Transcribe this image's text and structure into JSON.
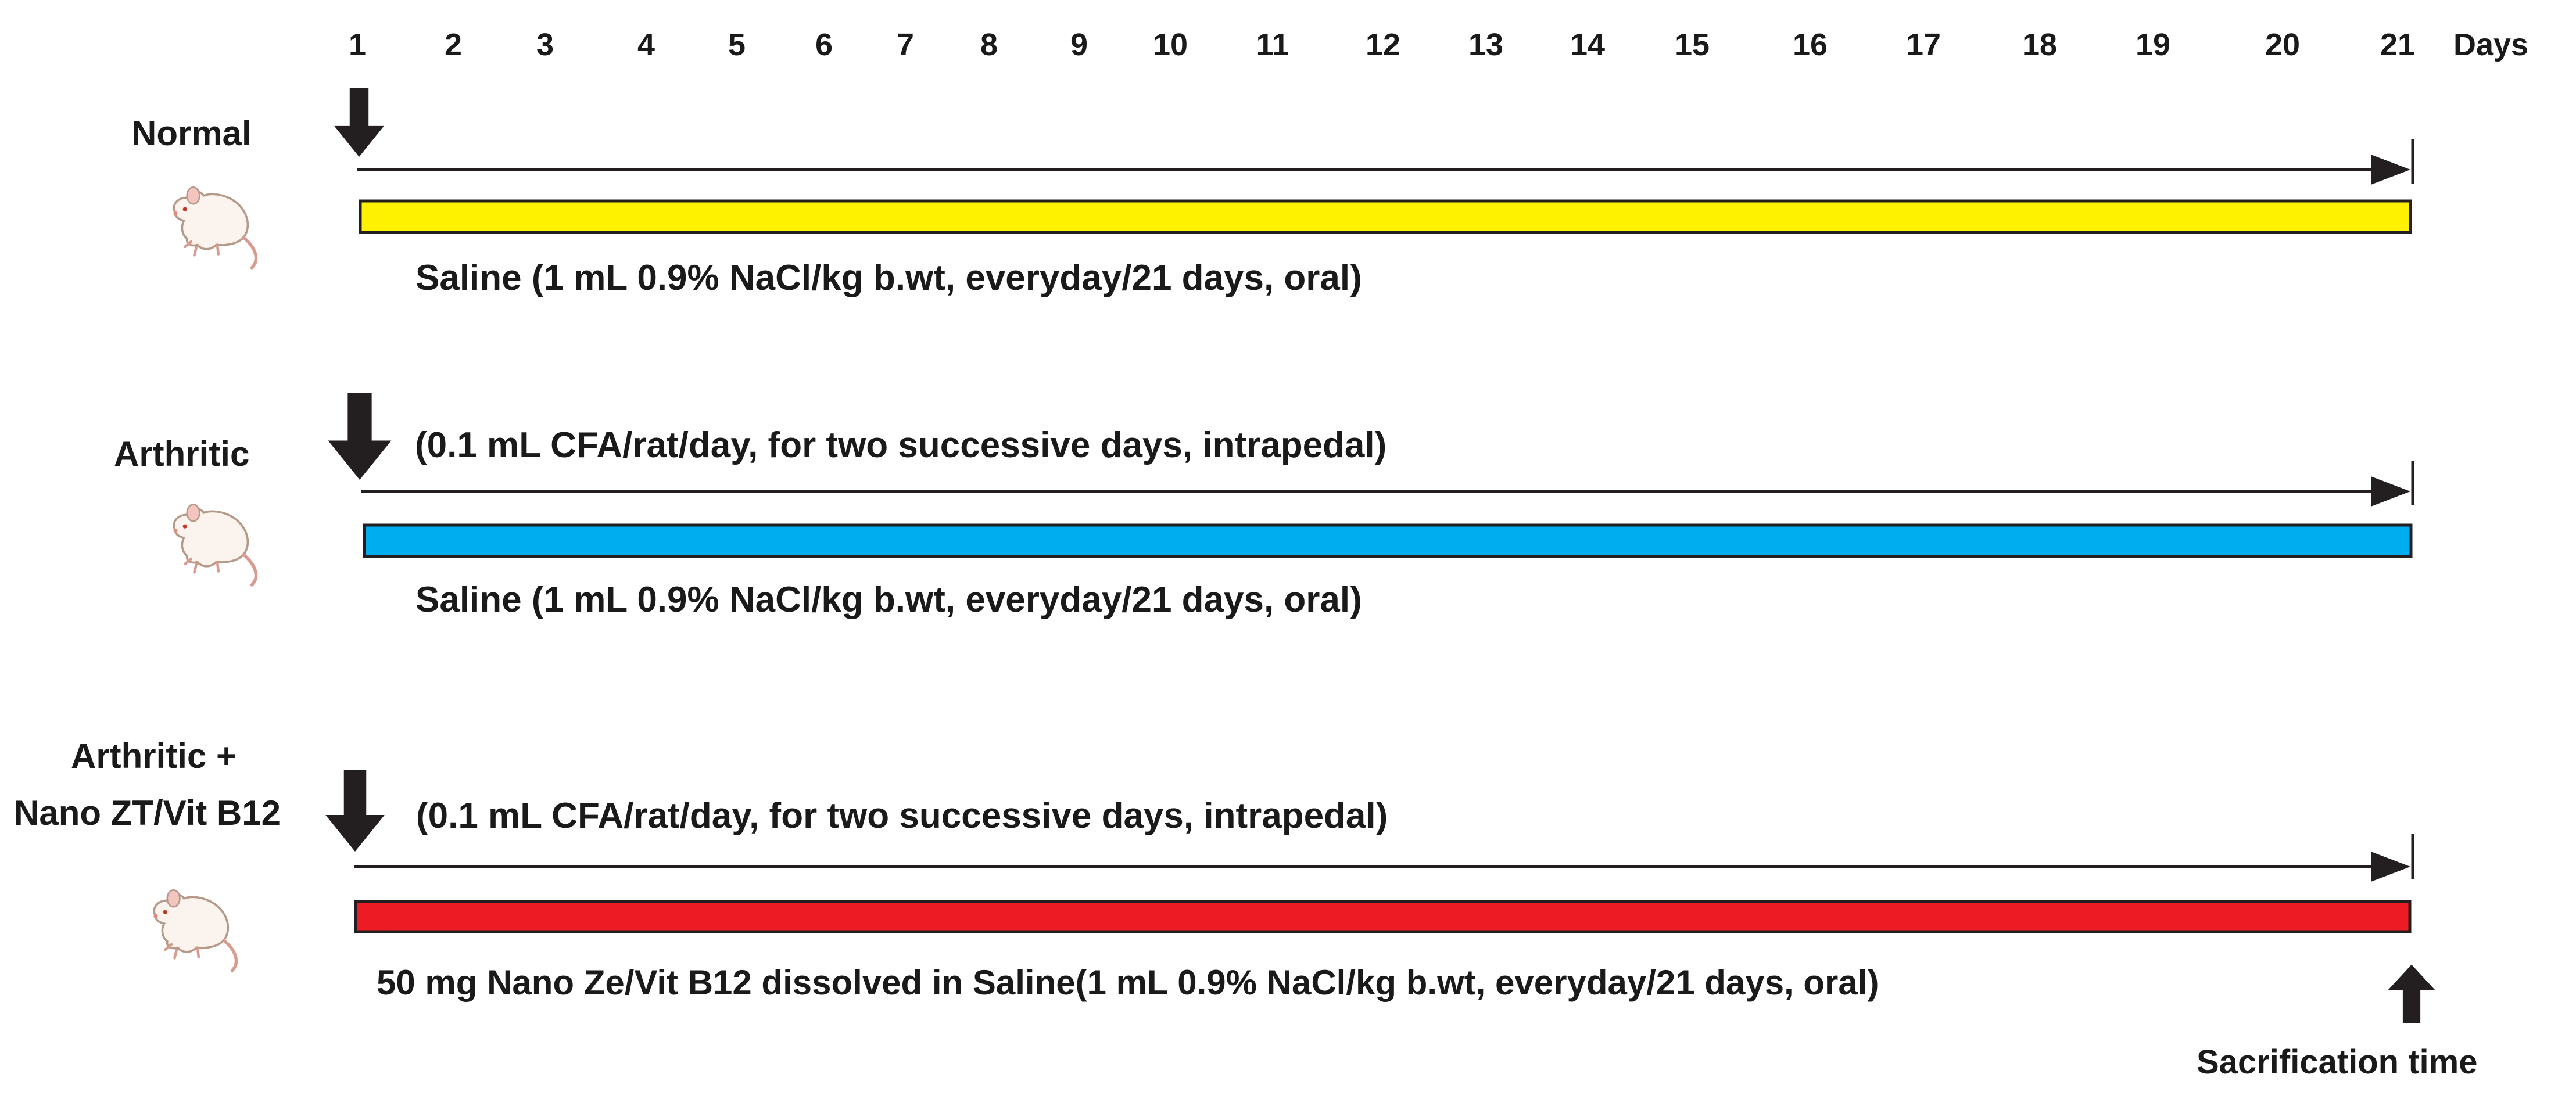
{
  "days": [
    "1",
    "2",
    "3",
    "4",
    "5",
    "6",
    "7",
    "8",
    "9",
    "10",
    "11",
    "12",
    "13",
    "14",
    "15",
    "16",
    "17",
    "18",
    "19",
    "20",
    "21"
  ],
  "days_unit": "Days",
  "groups": [
    {
      "label": "Normal",
      "bar_color": "#fff200",
      "above_line_text": "",
      "below_bar_text": "Saline (1 mL 0.9% NaCl/kg b.wt, everyday/21 days, oral)"
    },
    {
      "label": "Arthritic",
      "bar_color": "#00aeef",
      "above_line_text": "(0.1 mL CFA/rat/day, for two successive days, intrapedal)",
      "below_bar_text": "Saline (1 mL 0.9% NaCl/kg b.wt, everyday/21 days, oral)"
    },
    {
      "label_line1": "Arthritic +",
      "label_line2": "Nano ZT/Vit B12",
      "bar_color": "#ed1c24",
      "above_line_text": "(0.1 mL CFA/rat/day, for two successive days, intrapedal)",
      "below_bar_text": "50 mg Nano Ze/Vit B12  dissolved in Saline(1 mL 0.9% NaCl/kg b.wt, everyday/21 days, oral)"
    }
  ],
  "sacrification_label": "Sacrification time",
  "icons": {
    "arrow_down": "arrow-down-icon",
    "arrow_up": "arrow-up-icon",
    "rat": "rat-icon"
  },
  "colors": {
    "arrow": "#231f20",
    "line": "#231f20",
    "bar_outline": "#231f20"
  }
}
